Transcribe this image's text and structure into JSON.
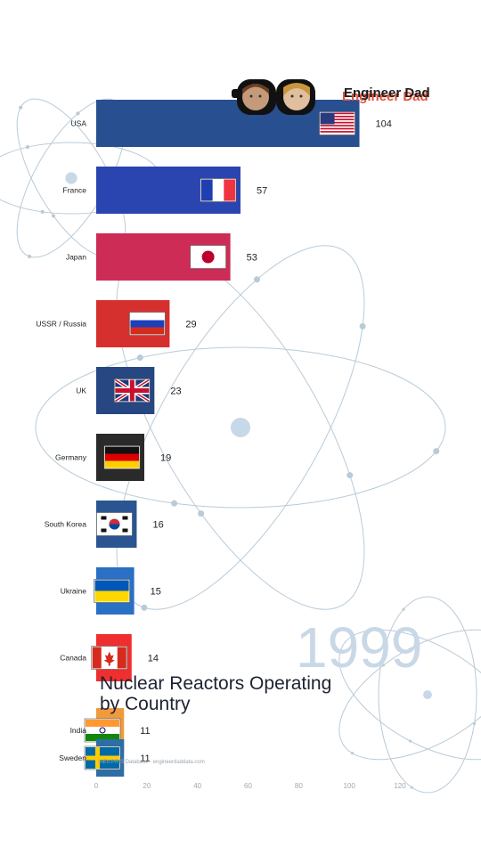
{
  "brand": {
    "name": "Engineer Dad"
  },
  "year": "1999",
  "title_line1": "Nuclear Reactors Operating",
  "title_line2": "by Country",
  "source": "IAEA PRIS Database · engineerdaddata.com",
  "colors": {
    "usa": "#284f8f",
    "france": "#2b45b0",
    "japan": "#cc2c55",
    "russia": "#d6302e",
    "uk": "#264782",
    "germany": "#2a2a2a",
    "south_korea": "#2a5590",
    "ukraine": "#2a70c4",
    "canada": "#ef2f2f",
    "india": "#f09a3e",
    "sweden": "#2e6ea7",
    "orbit": "#b9cbd8"
  },
  "chart_data": {
    "type": "bar",
    "orientation": "horizontal",
    "categories": [
      "USA",
      "France",
      "Japan",
      "USSR / Russia",
      "UK",
      "Germany",
      "South Korea",
      "Ukraine",
      "Canada",
      "India",
      "Sweden"
    ],
    "values": [
      104,
      57,
      53,
      29,
      23,
      19,
      16,
      15,
      14,
      11,
      11
    ],
    "flags": [
      "flag-usa",
      "flag-france",
      "flag-japan",
      "flag-russia",
      "flag-uk",
      "flag-germany",
      "flag-south-korea",
      "flag-ukraine",
      "flag-canada",
      "flag-india",
      "flag-sweden"
    ],
    "xlim": [
      0,
      130
    ],
    "xticks": [
      0,
      20,
      40,
      60,
      80,
      100,
      120
    ],
    "grid": false,
    "legend": "none"
  }
}
